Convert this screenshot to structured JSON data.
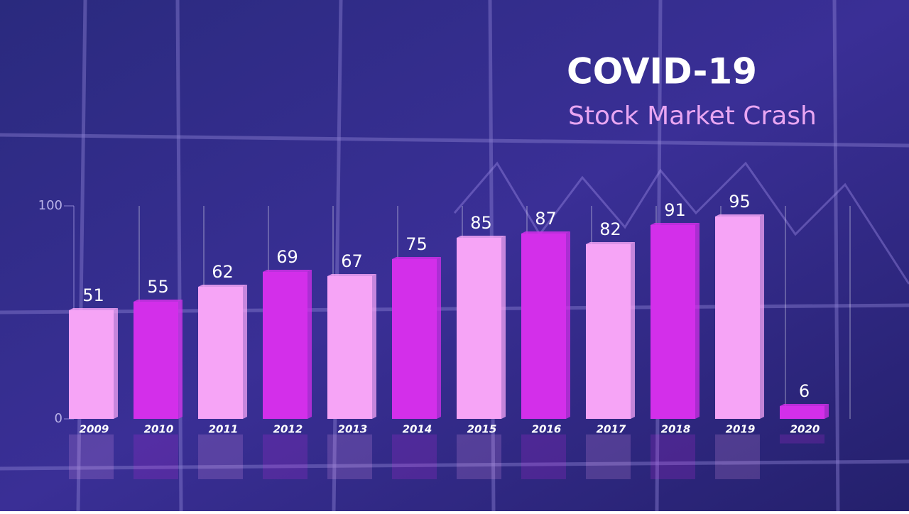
{
  "chart_data": {
    "type": "bar",
    "title": "COVID-19",
    "subtitle": "Stock Market Crash",
    "categories": [
      "2009",
      "2010",
      "2011",
      "2012",
      "2013",
      "2014",
      "2015",
      "2016",
      "2017",
      "2018",
      "2019",
      "2020"
    ],
    "values": [
      51,
      55,
      62,
      69,
      67,
      75,
      85,
      87,
      82,
      91,
      95,
      6
    ],
    "colors": [
      "#f6a4f6",
      "#d32fea",
      "#f6a4f6",
      "#d32fea",
      "#f6a4f6",
      "#d32fea",
      "#f6a4f6",
      "#d32fea",
      "#f6a4f6",
      "#d32fea",
      "#f6a4f6",
      "#d32fea"
    ],
    "ylim": [
      0,
      100
    ],
    "yticks": [
      0,
      100
    ],
    "grid": true
  }
}
